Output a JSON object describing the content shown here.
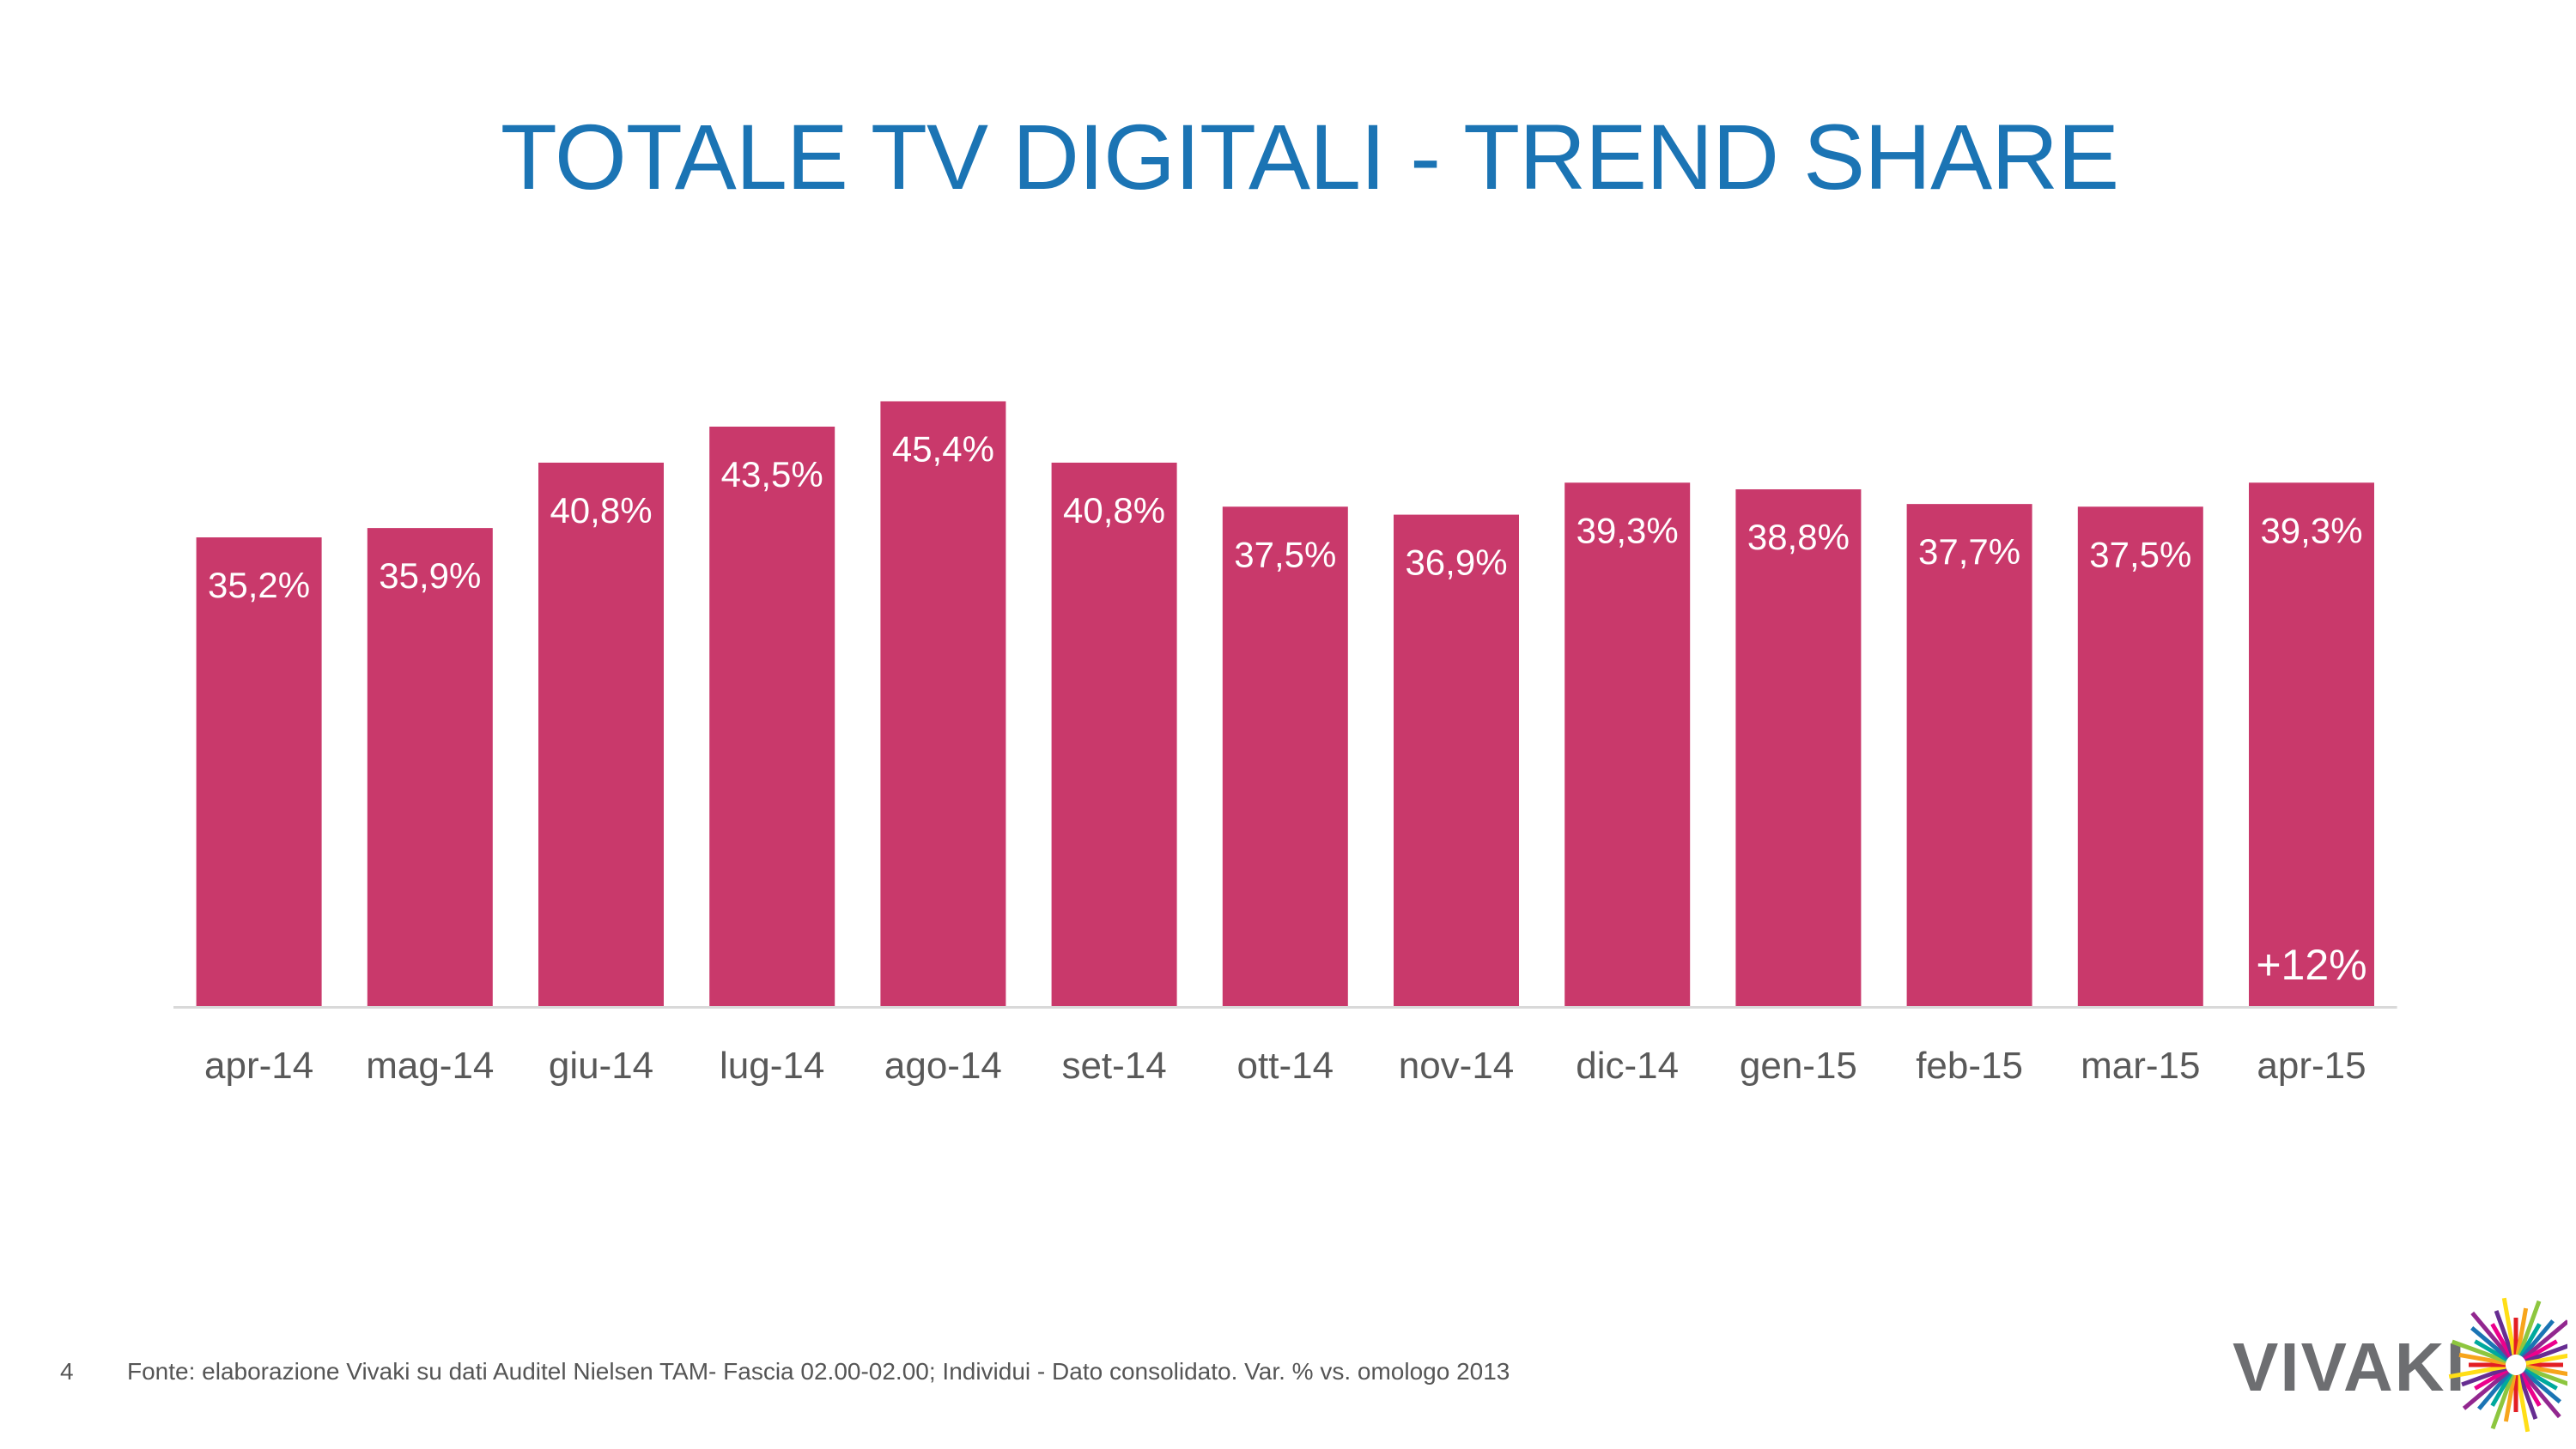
{
  "chart_data": {
    "type": "bar",
    "title": "TOTALE TV DIGITALI - TREND SHARE",
    "categories": [
      "apr-14",
      "mag-14",
      "giu-14",
      "lug-14",
      "ago-14",
      "set-14",
      "ott-14",
      "nov-14",
      "dic-14",
      "gen-15",
      "feb-15",
      "mar-15",
      "apr-15"
    ],
    "values": [
      35.2,
      35.9,
      40.8,
      43.5,
      45.4,
      40.8,
      37.5,
      36.9,
      39.3,
      38.8,
      37.7,
      37.5,
      39.3
    ],
    "data_labels": [
      "35,2%",
      "35,9%",
      "40,8%",
      "43,5%",
      "45,4%",
      "40,8%",
      "37,5%",
      "36,9%",
      "39,3%",
      "38,8%",
      "37,7%",
      "37,5%",
      "39,3%"
    ],
    "unit": "%",
    "ylim": [
      0,
      50
    ],
    "grid": false,
    "bar_color": "#C9396B",
    "annotation": {
      "category": "apr-15",
      "text": "+12%"
    }
  },
  "footer": {
    "page_number": "4",
    "source": "Fonte: elaborazione Vivaki su dati Auditel Nielsen TAM- Fascia 02.00-02.00; Individui - Dato consolidato. Var. % vs. omologo 2013",
    "logo": "VIVAKI"
  },
  "colors": {
    "title": "#1B74B4",
    "axis": "#D9D9D9",
    "labels": "#595959"
  }
}
